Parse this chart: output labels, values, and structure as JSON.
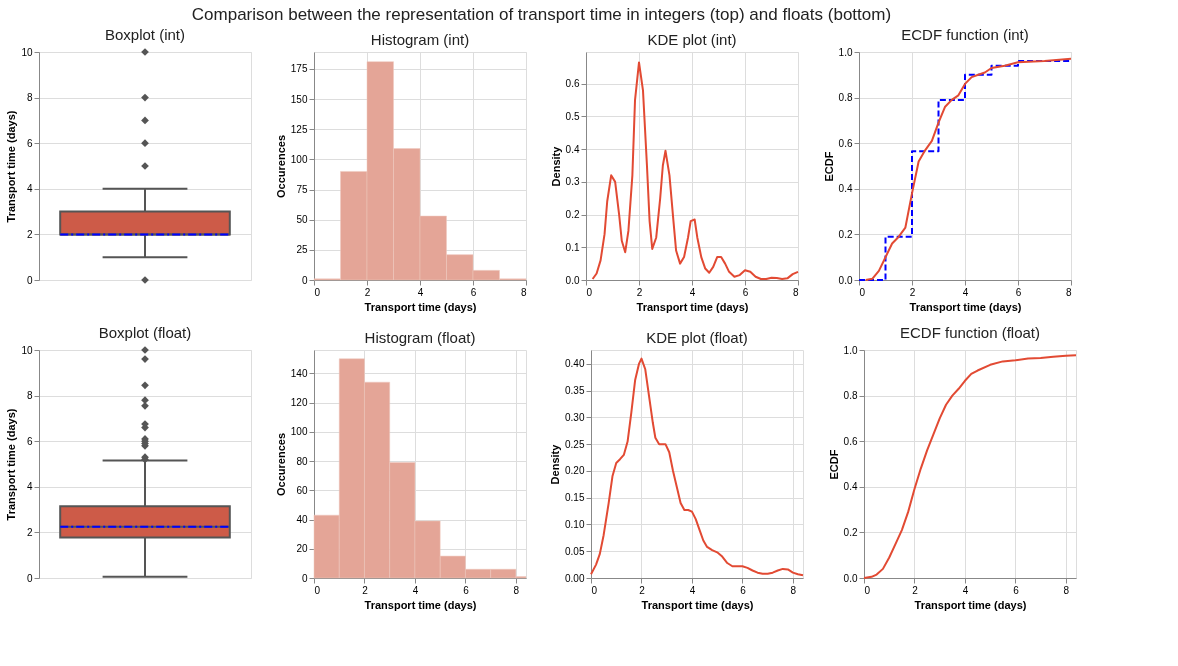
{
  "chart_data": [
    {
      "type": "box",
      "title": "Boxplot (int)",
      "annotations": [
        "Comparison between the representation of transport time in integers (top) and floats (bottom)"
      ],
      "ylabel": "Transport time (days)",
      "categories": [
        null
      ],
      "colors": [
        "#cd5b48"
      ],
      "grid": "y",
      "tick_labels": "y",
      "ylim": [
        0,
        10
      ],
      "yticks": [
        0,
        2,
        4,
        6,
        8,
        10
      ],
      "boxes": [
        {
          "low": 1,
          "q1": 2,
          "median": 2,
          "q3": 3,
          "high": 4,
          "mean": 2.0,
          "outliers": [
            0,
            5,
            6,
            7,
            8,
            10
          ]
        }
      ]
    },
    {
      "type": "histogram",
      "title": "Histogram (int)",
      "xlabel": "Transport time (days)",
      "ylabel": "Occurences",
      "color": "#e4a597",
      "grid": true,
      "bins": [
        0,
        1,
        2,
        3,
        4,
        5,
        6,
        7,
        8
      ],
      "values": [
        1,
        90,
        181,
        109,
        53,
        21,
        8,
        1
      ],
      "xlim": [
        0,
        8
      ],
      "xticks": [
        0,
        2,
        4,
        6,
        8
      ],
      "ylim": [
        0,
        189
      ],
      "yticks": [
        0,
        25,
        50,
        75,
        100,
        125,
        150,
        175
      ]
    },
    {
      "type": "line",
      "title": "KDE plot (int)",
      "xlabel": "Transport time (days)",
      "ylabel": "Density",
      "grid": true,
      "xlim": [
        0,
        8
      ],
      "xticks": [
        0,
        2,
        4,
        6,
        8
      ],
      "ylim": [
        0,
        0.697
      ],
      "yticks": [
        {
          "value": 0,
          "label": "0.0"
        },
        0.1,
        0.2,
        0.3,
        0.4,
        0.5,
        0.6
      ],
      "series": [
        {
          "color": "#e24a33",
          "x": [
            0.25,
            0.4,
            0.55,
            0.7,
            0.8,
            0.95,
            1.1,
            1.25,
            1.35,
            1.48,
            1.6,
            1.75,
            1.85,
            2.0,
            2.15,
            2.3,
            2.4,
            2.5,
            2.65,
            2.8,
            2.9,
            3.0,
            3.15,
            3.3,
            3.4,
            3.55,
            3.7,
            3.85,
            3.95,
            4.1,
            4.2,
            4.35,
            4.5,
            4.65,
            4.8,
            4.95,
            5.1,
            5.25,
            5.4,
            5.6,
            5.8,
            6.0,
            6.2,
            6.4,
            6.6,
            6.8,
            7.0,
            7.2,
            7.4,
            7.6,
            7.8,
            8.0
          ],
          "values": [
            0.003,
            0.02,
            0.06,
            0.14,
            0.24,
            0.32,
            0.3,
            0.2,
            0.12,
            0.085,
            0.15,
            0.32,
            0.55,
            0.665,
            0.58,
            0.35,
            0.18,
            0.095,
            0.13,
            0.25,
            0.35,
            0.395,
            0.32,
            0.18,
            0.09,
            0.05,
            0.07,
            0.13,
            0.18,
            0.185,
            0.13,
            0.07,
            0.035,
            0.022,
            0.04,
            0.07,
            0.07,
            0.05,
            0.025,
            0.01,
            0.015,
            0.03,
            0.025,
            0.01,
            0.003,
            0.003,
            0.007,
            0.006,
            0.003,
            0.005,
            0.018,
            0.025
          ]
        }
      ]
    },
    {
      "type": "line",
      "title": "ECDF function (int)",
      "xlabel": "Transport time (days)",
      "ylabel": "ECDF",
      "grid": true,
      "xlim": [
        0,
        8
      ],
      "xticks": [
        0,
        2,
        4,
        6,
        8
      ],
      "ylim": [
        0,
        1
      ],
      "yticks": [
        {
          "value": 0,
          "label": "0.0"
        },
        0.2,
        0.4,
        0.6,
        0.8,
        {
          "value": 1,
          "label": "1.0"
        }
      ],
      "series": [
        {
          "type": "step",
          "line_style": "dashed",
          "color": "#0000ff",
          "x": [
            0,
            1,
            2,
            3,
            4,
            5,
            6,
            8
          ],
          "values": [
            0,
            0.19,
            0.565,
            0.79,
            0.9,
            0.94,
            0.96,
            0.96
          ]
        },
        {
          "type": "line",
          "color": "#e24a33",
          "x": [
            0.25,
            0.5,
            0.75,
            1,
            1.25,
            1.5,
            1.75,
            2.0,
            2.25,
            2.5,
            2.75,
            3.0,
            3.25,
            3.5,
            3.75,
            4.0,
            4.25,
            4.5,
            4.75,
            5.0,
            5.5,
            6.0,
            7.0,
            8.0
          ],
          "values": [
            0,
            0.005,
            0.04,
            0.1,
            0.16,
            0.19,
            0.23,
            0.38,
            0.52,
            0.57,
            0.61,
            0.69,
            0.76,
            0.79,
            0.81,
            0.86,
            0.89,
            0.9,
            0.91,
            0.93,
            0.94,
            0.955,
            0.96,
            0.97
          ]
        }
      ]
    },
    {
      "type": "box",
      "title": "Boxplot (float)",
      "ylabel": "Transport time (days)",
      "categories": [
        null
      ],
      "colors": [
        "#cd5b48"
      ],
      "grid": "y",
      "tick_labels": "y",
      "ylim": [
        0,
        10
      ],
      "yticks": [
        0,
        2,
        4,
        6,
        8,
        10
      ],
      "boxes": [
        {
          "low": 0.05,
          "q1": 1.78,
          "median": 2.25,
          "q3": 3.15,
          "high": 5.15,
          "mean": 2.25,
          "outliers": [
            5.2,
            5.3,
            5.8,
            5.9,
            6.0,
            6.1,
            6.6,
            6.75,
            7.55,
            7.8,
            8.45,
            9.6,
            10.0
          ]
        }
      ]
    },
    {
      "type": "histogram",
      "title": "Histogram (float)",
      "xlabel": "Transport time (days)",
      "ylabel": "Occurences",
      "color": "#e4a597",
      "grid": true,
      "bins": [
        0,
        1,
        2,
        3,
        4,
        5,
        6,
        7,
        8,
        8.4
      ],
      "values": [
        43,
        150,
        134,
        79,
        39,
        15,
        6,
        6,
        1
      ],
      "xlim": [
        0,
        8.4
      ],
      "xticks": [
        0,
        2,
        4,
        6,
        8
      ],
      "ylim": [
        0,
        156
      ],
      "yticks": [
        0,
        20,
        40,
        60,
        80,
        100,
        120,
        140
      ]
    },
    {
      "type": "line",
      "title": "KDE plot (float)",
      "xlabel": "Transport time (days)",
      "ylabel": "Density",
      "grid": true,
      "xlim": [
        0,
        8.4
      ],
      "xticks": [
        0,
        2,
        4,
        6,
        8
      ],
      "ylim": [
        0,
        0.426
      ],
      "yticks": [
        {
          "value": 0,
          "label": "0.00"
        },
        0.05,
        {
          "value": 0.1,
          "label": "0.10"
        },
        0.15,
        {
          "value": 0.2,
          "label": "0.20"
        },
        0.25,
        {
          "value": 0.3,
          "label": "0.30"
        },
        0.35,
        {
          "value": 0.4,
          "label": "0.40"
        }
      ],
      "series": [
        {
          "color": "#e24a33",
          "x": [
            0,
            0.2,
            0.35,
            0.5,
            0.7,
            0.85,
            1.0,
            1.15,
            1.3,
            1.45,
            1.6,
            1.75,
            1.9,
            2.0,
            2.15,
            2.3,
            2.45,
            2.55,
            2.7,
            2.85,
            2.95,
            3.1,
            3.25,
            3.4,
            3.55,
            3.7,
            3.85,
            4.0,
            4.15,
            4.3,
            4.45,
            4.6,
            4.8,
            5.0,
            5.2,
            5.4,
            5.6,
            5.8,
            6.0,
            6.2,
            6.4,
            6.6,
            6.8,
            7.0,
            7.2,
            7.4,
            7.6,
            7.8,
            8.0,
            8.2,
            8.4
          ],
          "values": [
            0.007,
            0.025,
            0.045,
            0.08,
            0.14,
            0.19,
            0.215,
            0.222,
            0.23,
            0.255,
            0.31,
            0.37,
            0.4,
            0.41,
            0.39,
            0.34,
            0.29,
            0.262,
            0.25,
            0.25,
            0.25,
            0.235,
            0.2,
            0.17,
            0.14,
            0.127,
            0.127,
            0.124,
            0.11,
            0.09,
            0.07,
            0.058,
            0.052,
            0.048,
            0.04,
            0.028,
            0.022,
            0.022,
            0.022,
            0.019,
            0.014,
            0.01,
            0.008,
            0.008,
            0.01,
            0.014,
            0.017,
            0.016,
            0.01,
            0.007,
            0.005
          ]
        }
      ]
    },
    {
      "type": "line",
      "title": "ECDF function (float)",
      "xlabel": "Transport time (days)",
      "ylabel": "ECDF",
      "grid": true,
      "xlim": [
        0,
        8.4
      ],
      "xticks": [
        0,
        2,
        4,
        6,
        8
      ],
      "ylim": [
        0,
        1
      ],
      "yticks": [
        {
          "value": 0,
          "label": "0.0"
        },
        0.2,
        0.4,
        0.6,
        0.8,
        {
          "value": 1,
          "label": "1.0"
        }
      ],
      "series": [
        {
          "color": "#e24a33",
          "x": [
            0,
            0.3,
            0.5,
            0.75,
            1.0,
            1.25,
            1.5,
            1.75,
            2.0,
            2.25,
            2.5,
            2.75,
            3.0,
            3.25,
            3.5,
            3.75,
            4.0,
            4.25,
            4.5,
            5.0,
            5.5,
            6.0,
            6.5,
            7.0,
            7.5,
            8.0,
            8.4
          ],
          "values": [
            0,
            0.005,
            0.015,
            0.04,
            0.09,
            0.15,
            0.21,
            0.29,
            0.39,
            0.48,
            0.56,
            0.63,
            0.7,
            0.76,
            0.8,
            0.83,
            0.865,
            0.895,
            0.91,
            0.935,
            0.95,
            0.955,
            0.963,
            0.965,
            0.97,
            0.975,
            0.977
          ]
        }
      ]
    }
  ]
}
